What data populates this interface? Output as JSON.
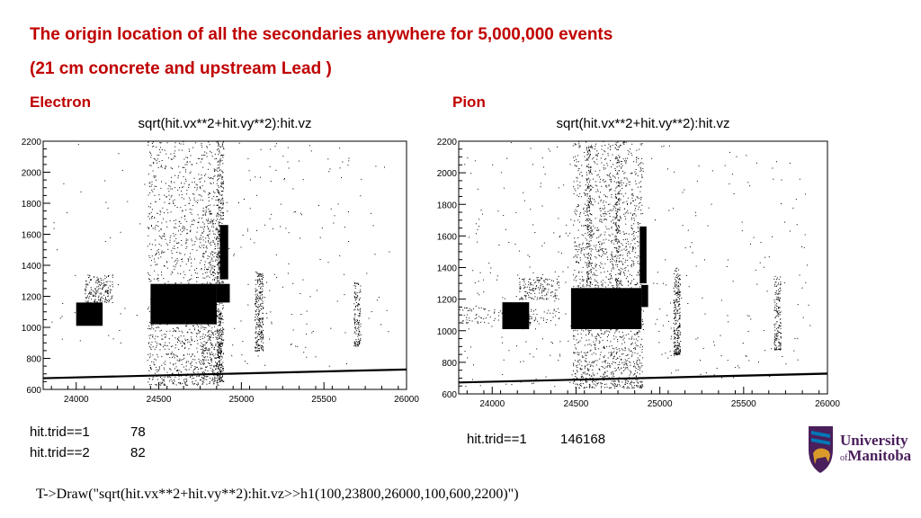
{
  "header": {
    "title_line1": "The origin location of all the secondaries anywhere for 5,000,000 events",
    "title_line2": "(21 cm concrete and upstream Lead )"
  },
  "panels": {
    "left_label": "Electron",
    "right_label": "Pion"
  },
  "stats": {
    "left": [
      {
        "key": "hit.trid==1",
        "value": "78"
      },
      {
        "key": "hit.trid==2",
        "value": "82"
      }
    ],
    "right": [
      {
        "key": "hit.trid==1",
        "value": "146168"
      }
    ]
  },
  "command": "T->Draw(\"sqrt(hit.vx**2+hit.vy**2):hit.vz>>h1(100,23800,26000,100,600,2200)\")",
  "logo": {
    "line1": "University",
    "of": "of",
    "line2": "Manitoba",
    "colors": {
      "purple": "#4a1f5c",
      "blue": "#0077b6",
      "gold": "#d89b2b"
    }
  },
  "chart_data": [
    {
      "type": "scatter",
      "title": "sqrt(hit.vx**2+hit.vy**2):hit.vz",
      "panel": "Electron",
      "xlim": [
        23800,
        26000
      ],
      "ylim": [
        600,
        2200
      ],
      "xticks": [
        "24000",
        "24500",
        "25000",
        "25500",
        "26000"
      ],
      "yticks": [
        "600",
        "800",
        "1000",
        "1200",
        "1400",
        "1600",
        "1800",
        "2000",
        "2200"
      ],
      "legend": "none",
      "grid": false,
      "color": "#000000"
    },
    {
      "type": "scatter",
      "title": "sqrt(hit.vx**2+hit.vy**2):hit.vz",
      "panel": "Pion",
      "xlim": [
        23800,
        26000
      ],
      "ylim": [
        600,
        2200
      ],
      "xticks": [
        "24000",
        "24500",
        "25000",
        "25500",
        "26000"
      ],
      "yticks": [
        "600",
        "800",
        "1000",
        "1200",
        "1400",
        "1600",
        "1800",
        "2000",
        "2200"
      ],
      "legend": "none",
      "grid": false,
      "color": "#000000"
    }
  ]
}
